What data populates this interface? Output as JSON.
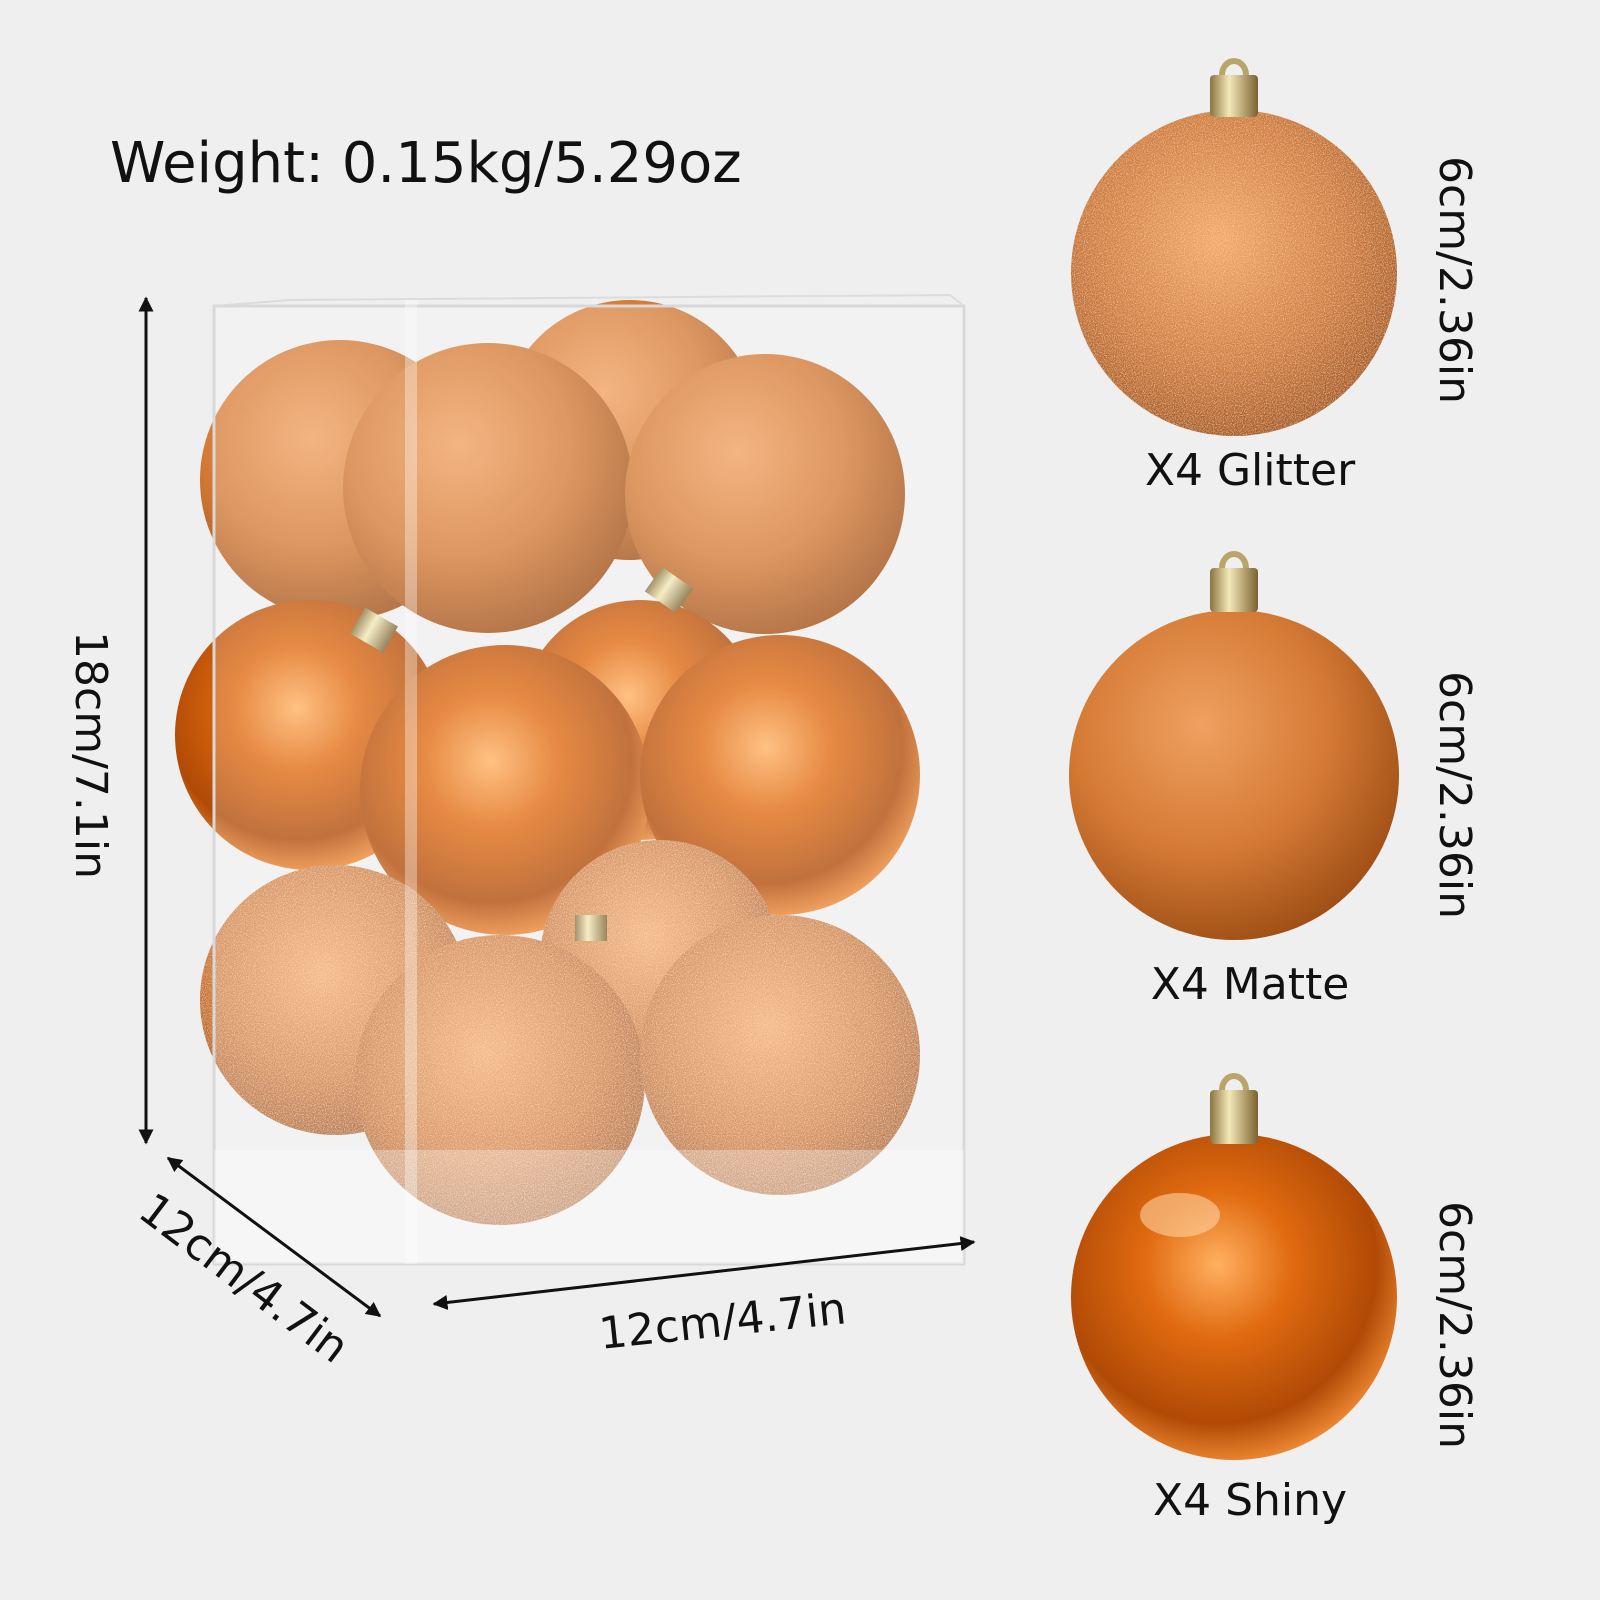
{
  "header": {
    "weight": "Weight: 0.15kg/5.29oz"
  },
  "box": {
    "height_label": "18cm/7.1in",
    "depth_label": "12cm/4.7in",
    "width_label": "12cm/4.7in"
  },
  "ornaments": [
    {
      "size_label": "6cm/2.36in",
      "label": "X4 Glitter"
    },
    {
      "size_label": "6cm/2.36in",
      "label": "X4 Matte"
    },
    {
      "size_label": "6cm/2.36in",
      "label": "X4 Shiny"
    }
  ]
}
